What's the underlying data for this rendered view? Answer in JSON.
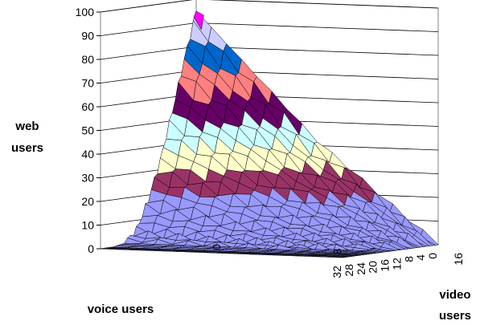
{
  "chart_data": {
    "type": "surface",
    "title": "",
    "z_axis": {
      "label_lines": [
        "web",
        "users"
      ],
      "ticks": [
        0,
        10,
        20,
        30,
        40,
        50,
        60,
        70,
        80,
        90,
        100
      ],
      "range": [
        0,
        100
      ]
    },
    "x_axis": {
      "label": "voice users",
      "ticks": [
        32,
        28,
        24,
        20,
        16,
        12,
        8,
        4,
        0
      ],
      "range": [
        0,
        32
      ]
    },
    "y_axis": {
      "label_lines": [
        "video",
        "users"
      ],
      "ticks": [
        0,
        8,
        16
      ],
      "range": [
        0,
        16
      ]
    },
    "surface_values_by_voice_users": {
      "voice_users": [
        0,
        4,
        8,
        12,
        16,
        20,
        24,
        28,
        32
      ],
      "web_users_at_video_0": [
        95,
        75,
        54,
        34,
        18,
        6,
        1,
        0,
        0
      ],
      "web_users_at_video_8": [
        42,
        33,
        24,
        15,
        8,
        3,
        1,
        0,
        0
      ],
      "web_users_at_video_16": [
        0,
        0,
        0,
        0,
        0,
        0,
        0,
        0,
        0
      ]
    },
    "color_bands": [
      {
        "range": [
          0,
          10
        ],
        "color": "#9999ff"
      },
      {
        "range": [
          10,
          20
        ],
        "color": "#9999ff"
      },
      {
        "range": [
          20,
          30
        ],
        "color": "#993366"
      },
      {
        "range": [
          30,
          40
        ],
        "color": "#ffffcc"
      },
      {
        "range": [
          40,
          50
        ],
        "color": "#ccffff"
      },
      {
        "range": [
          50,
          60
        ],
        "color": "#660066"
      },
      {
        "range": [
          60,
          70
        ],
        "color": "#ff8080"
      },
      {
        "range": [
          70,
          80
        ],
        "color": "#0066cc"
      },
      {
        "range": [
          80,
          90
        ],
        "color": "#ccccff"
      },
      {
        "range": [
          90,
          100
        ],
        "color": "#000080"
      }
    ],
    "peak_color": "#ff00ff",
    "floor_color": "#808080",
    "gridlines": true
  }
}
